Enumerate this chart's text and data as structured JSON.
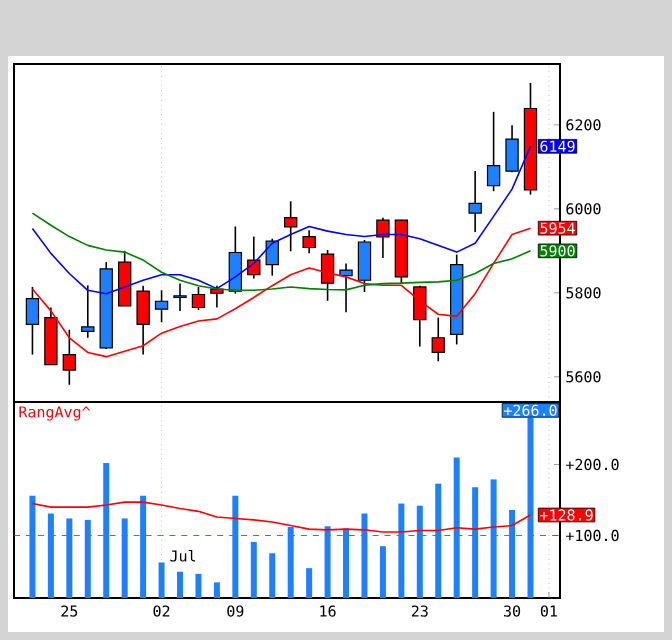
{
  "chart_data": [
    {
      "type": "candlestick",
      "categories": [
        null,
        null,
        "25",
        null,
        null,
        null,
        null,
        "02",
        null,
        null,
        null,
        "09",
        null,
        null,
        null,
        null,
        "16",
        null,
        null,
        null,
        null,
        "23",
        null,
        null,
        null,
        null,
        "30",
        null,
        "01"
      ],
      "ohlc": [
        [
          5725,
          5814,
          5653,
          5786
        ],
        [
          5741,
          5765,
          5629,
          5629
        ],
        [
          5653,
          5712,
          5581,
          5616
        ],
        [
          5708,
          5818,
          5693,
          5719
        ],
        [
          5669,
          5873,
          5666,
          5857
        ],
        [
          5873,
          5900,
          5769,
          5769
        ],
        [
          5804,
          5817,
          5653,
          5725
        ],
        [
          5761,
          5806,
          5730,
          5780
        ],
        [
          5789,
          5822,
          5757,
          5793
        ],
        [
          5796,
          5814,
          5759,
          5765
        ],
        [
          5809,
          5817,
          5765,
          5799
        ],
        [
          5804,
          5958,
          5798,
          5896
        ],
        [
          5878,
          5934,
          5834,
          5843
        ],
        [
          5867,
          5929,
          5841,
          5923
        ],
        [
          5979,
          6018,
          5899,
          5957
        ],
        [
          5934,
          5949,
          5894,
          5908
        ],
        [
          5892,
          5902,
          5781,
          5823
        ],
        [
          5841,
          5870,
          5754,
          5854
        ],
        [
          5830,
          5926,
          5802,
          5921
        ],
        [
          5973,
          5979,
          5883,
          5933
        ],
        [
          5973,
          5974,
          5822,
          5838
        ],
        [
          5814,
          5817,
          5672,
          5736
        ],
        [
          5693,
          5741,
          5637,
          5658
        ],
        [
          5701,
          5891,
          5677,
          5867
        ],
        [
          5990,
          6090,
          5945,
          6013
        ],
        [
          6055,
          6231,
          6042,
          6103
        ],
        [
          6090,
          6199,
          6087,
          6166
        ],
        [
          6239,
          6300,
          6034,
          6045
        ],
        null
      ],
      "colors": [
        "#1e7fff",
        "#ff0000",
        "#ff0000",
        "#1e7fff",
        "#1e7fff",
        "#ff0000",
        "#ff0000",
        "#1e7fff",
        "#1e7fff",
        "#ff0000",
        "#ff0000",
        "#1e7fff",
        "#ff0000",
        "#1e7fff",
        "#ff0000",
        "#ff0000",
        "#ff0000",
        "#1e7fff",
        "#1e7fff",
        "#ff0000",
        "#ff0000",
        "#ff0000",
        "#ff0000",
        "#1e7fff",
        "#1e7fff",
        "#1e7fff",
        "#1e7fff",
        "#ff0000",
        null
      ],
      "series": [
        {
          "type": "line",
          "color": "#0000ff",
          "values": [
            5953,
            5894,
            5846,
            5806,
            5798,
            5814,
            5830,
            5843,
            5843,
            5830,
            5810,
            5838,
            5870,
            5918,
            5939,
            5958,
            5947,
            5939,
            5934,
            5939,
            5939,
            5929,
            5913,
            5897,
            5918,
            5982,
            6047,
            6149,
            null
          ],
          "value_labels": [
            null,
            null,
            null,
            null,
            null,
            null,
            null,
            null,
            null,
            null,
            null,
            null,
            null,
            null,
            null,
            null,
            null,
            null,
            null,
            null,
            null,
            null,
            null,
            null,
            null,
            null,
            null,
            "6149",
            null
          ]
        },
        {
          "type": "line",
          "color": "#ff0000",
          "values": [
            5809,
            5757,
            5693,
            5658,
            5648,
            5661,
            5674,
            5704,
            5720,
            5733,
            5738,
            5762,
            5789,
            5817,
            5843,
            5859,
            5848,
            5838,
            5822,
            5818,
            5818,
            5781,
            5749,
            5744,
            5798,
            5870,
            5939,
            5954,
            null
          ],
          "value_labels": [
            null,
            null,
            null,
            null,
            null,
            null,
            null,
            null,
            null,
            null,
            null,
            null,
            null,
            null,
            null,
            null,
            null,
            null,
            null,
            null,
            null,
            null,
            null,
            null,
            null,
            null,
            null,
            "5954",
            null
          ]
        },
        {
          "type": "line",
          "color": "#008000",
          "values": [
            5990,
            5961,
            5934,
            5913,
            5902,
            5897,
            5878,
            5849,
            5830,
            5817,
            5809,
            5806,
            5806,
            5809,
            5814,
            5810,
            5808,
            5807,
            5818,
            5822,
            5823,
            5825,
            5826,
            5830,
            5846,
            5870,
            5881,
            5900,
            null
          ],
          "value_labels": [
            null,
            null,
            null,
            null,
            null,
            null,
            null,
            null,
            null,
            null,
            null,
            null,
            null,
            null,
            null,
            null,
            null,
            null,
            null,
            null,
            null,
            null,
            null,
            null,
            null,
            null,
            null,
            "5900",
            null
          ]
        }
      ],
      "ylim": [
        5540,
        6345
      ],
      "yticks": [
        5600,
        5800,
        6000,
        6200
      ],
      "tick_labels": "y",
      "ref_lines": [
        {
          "axis": "x",
          "value": "02",
          "color": "#a0a0a0",
          "line_style": "dotted"
        },
        {
          "axis": "x",
          "value": "01",
          "color": "#a0a0a0",
          "line_style": "dotted"
        }
      ]
    },
    {
      "type": "bar",
      "title": "RangAvg^",
      "categories": [
        null,
        null,
        "25",
        null,
        null,
        null,
        null,
        "02",
        null,
        null,
        null,
        "09",
        null,
        null,
        null,
        null,
        "16",
        null,
        null,
        null,
        null,
        "23",
        null,
        null,
        null,
        null,
        "30",
        null,
        "01"
      ],
      "series": [
        {
          "type": "bar",
          "color": "#1e7fff",
          "values": [
            156,
            131,
            124,
            122,
            202,
            124,
            156,
            62,
            49,
            46,
            34,
            156,
            91,
            75,
            112,
            54,
            113,
            110,
            131,
            85,
            145,
            142,
            173,
            210,
            168,
            179,
            136,
            266,
            null
          ],
          "value_labels": [
            null,
            null,
            null,
            null,
            null,
            null,
            null,
            null,
            null,
            null,
            null,
            null,
            null,
            null,
            null,
            null,
            null,
            null,
            null,
            null,
            null,
            null,
            null,
            null,
            null,
            null,
            null,
            "+266.0",
            null
          ]
        },
        {
          "type": "line",
          "color": "#ff0000",
          "values": [
            145,
            140,
            140,
            140,
            143,
            147,
            147,
            143,
            138,
            134,
            126,
            124,
            122,
            119,
            114,
            109,
            108,
            109,
            108,
            105,
            105,
            107,
            107,
            111,
            109,
            112,
            114,
            128.9,
            null
          ],
          "value_labels": [
            null,
            null,
            null,
            null,
            null,
            null,
            null,
            null,
            null,
            null,
            null,
            null,
            null,
            null,
            null,
            null,
            null,
            null,
            null,
            null,
            null,
            null,
            null,
            null,
            null,
            null,
            null,
            "+128.9",
            null
          ]
        }
      ],
      "ylim": [
        12,
        288
      ],
      "yticks": [
        {
          "value": 100,
          "label": "+100.0"
        },
        {
          "value": 200,
          "label": "+200.0"
        }
      ],
      "ref_lines": [
        {
          "axis": "y",
          "value": 100,
          "color": "#ff0000",
          "line_style": "dashed"
        },
        {
          "axis": "x",
          "value": "02",
          "color": "#a0a0a0",
          "line_style": "dotted"
        },
        {
          "axis": "x",
          "value": "01",
          "color": "#a0a0a0",
          "line_style": "dotted"
        }
      ],
      "annotations": [
        {
          "text": "Jul",
          "x": "02"
        }
      ]
    }
  ]
}
